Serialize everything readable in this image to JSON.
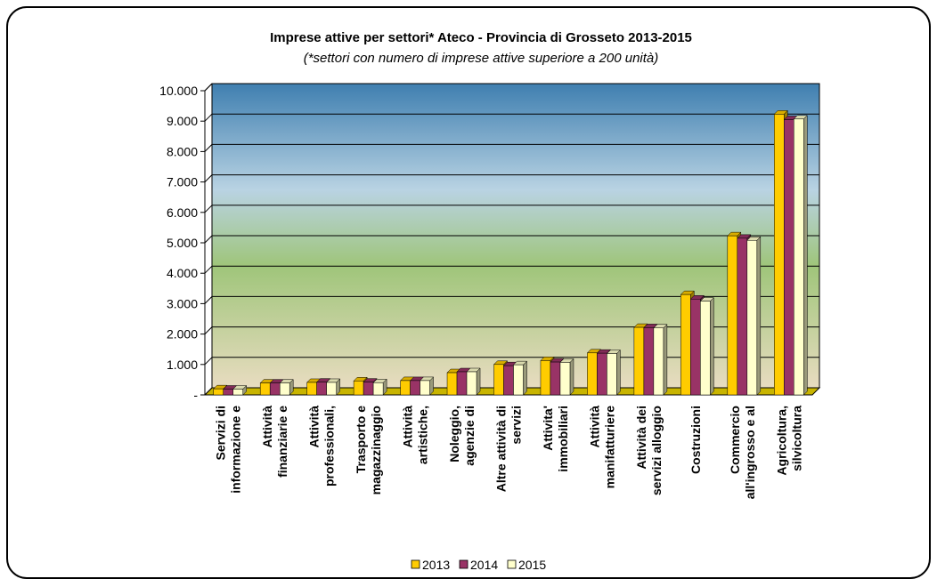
{
  "chart_data": {
    "type": "bar",
    "title": "Imprese attive per settori* Ateco - Provincia di Grosseto 2013-2015",
    "subtitle": "(*settori con numero di  imprese attive superiore a 200 unità)",
    "categories": [
      [
        "Servizi di",
        "informazione e"
      ],
      [
        "Attività",
        "finanziarie e"
      ],
      [
        "Attività",
        "professionali,"
      ],
      [
        "Trasporto e",
        "magazzinaggio"
      ],
      [
        "Attività",
        "artistiche,"
      ],
      [
        "Noleggio,",
        "agenzie di"
      ],
      [
        "Altre attività di",
        "servizi"
      ],
      [
        "Attivita'",
        "immobiliari"
      ],
      [
        "Attività",
        "manifatturiere"
      ],
      [
        "Attività dei",
        "servizi alloggio"
      ],
      [
        "Costruzioni"
      ],
      [
        "Commercio",
        "all'ingrosso e al"
      ],
      [
        "Agricoltura,",
        "silvicoltura"
      ]
    ],
    "series": [
      {
        "name": "2013",
        "color": "#ffcc00",
        "values": [
          200,
          390,
          410,
          460,
          470,
          730,
          1000,
          1130,
          1380,
          2220,
          3300,
          5230,
          9230
        ]
      },
      {
        "name": "2014",
        "color": "#993366",
        "values": [
          190,
          390,
          420,
          420,
          470,
          760,
          960,
          1080,
          1370,
          2210,
          3150,
          5150,
          9050
        ]
      },
      {
        "name": "2015",
        "color": "#ffffcc",
        "values": [
          190,
          390,
          410,
          400,
          470,
          760,
          990,
          1070,
          1360,
          2200,
          3080,
          5080,
          9070
        ]
      }
    ],
    "ylim": [
      0,
      10000
    ],
    "yticks": [
      {
        "value": 0,
        "label": "-"
      },
      {
        "value": 1000,
        "label": "1.000"
      },
      {
        "value": 2000,
        "label": "2.000"
      },
      {
        "value": 3000,
        "label": "3.000"
      },
      {
        "value": 4000,
        "label": "4.000"
      },
      {
        "value": 5000,
        "label": "5.000"
      },
      {
        "value": 6000,
        "label": "6.000"
      },
      {
        "value": 7000,
        "label": "7.000"
      },
      {
        "value": 8000,
        "label": "8.000"
      },
      {
        "value": 9000,
        "label": "9.000"
      },
      {
        "value": 10000,
        "label": "10.000"
      }
    ],
    "grid": true,
    "legend": "bottom"
  }
}
